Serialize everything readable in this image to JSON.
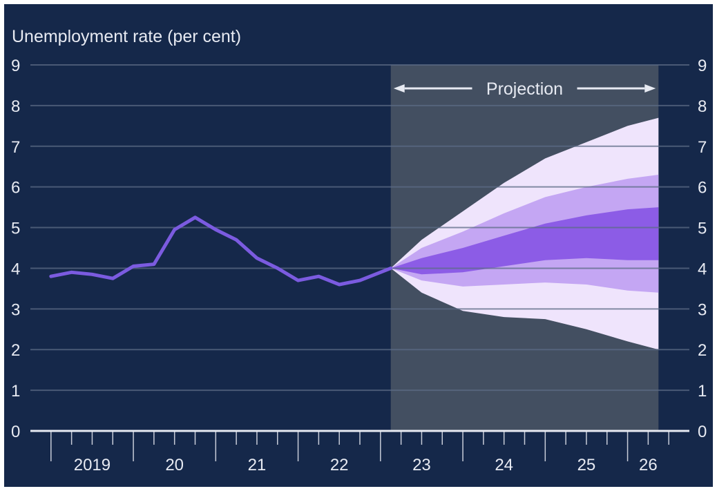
{
  "chart_data": {
    "type": "area",
    "title": "Unemployment rate (per cent)",
    "ylim": [
      0,
      9
    ],
    "y_ticks": [
      "0",
      "1",
      "2",
      "3",
      "4",
      "5",
      "6",
      "7",
      "8",
      "9"
    ],
    "x_tick_labels": [
      "2019",
      "20",
      "21",
      "22",
      "23",
      "24",
      "25",
      "26"
    ],
    "x_tick_positions": [
      2019.5,
      2020.5,
      2021.5,
      2022.5,
      2023.5,
      2024.5,
      2025.5,
      2026.25
    ],
    "xlim": [
      2018.75,
      2026.75
    ],
    "projection_label": "Projection",
    "projection_start": 2023.125,
    "projection_end": 2026.375,
    "grid": true,
    "series": [
      {
        "x": [
          2019.0,
          2019.25,
          2019.5,
          2019.75,
          2020.0,
          2020.25,
          2020.5,
          2020.75,
          2021.0,
          2021.25,
          2021.5,
          2021.75,
          2022.0,
          2022.25,
          2022.5,
          2022.75,
          2023.0,
          2023.125
        ],
        "values": [
          3.8,
          3.9,
          3.85,
          3.75,
          4.05,
          4.1,
          4.95,
          5.25,
          4.95,
          4.7,
          4.25,
          4.0,
          3.7,
          3.8,
          3.6,
          3.7,
          3.9,
          4.0
        ]
      }
    ],
    "fan_chart": {
      "x": [
        2023.125,
        2023.5,
        2024.0,
        2024.5,
        2025.0,
        2025.5,
        2026.0,
        2026.375
      ],
      "bands": [
        {
          "lower": [
            4.0,
            3.4,
            2.95,
            2.8,
            2.75,
            2.5,
            2.2,
            2.0
          ],
          "upper": [
            4.0,
            4.7,
            5.4,
            6.1,
            6.7,
            7.1,
            7.5,
            7.7
          ]
        },
        {
          "lower": [
            4.0,
            3.7,
            3.55,
            3.6,
            3.65,
            3.6,
            3.45,
            3.4
          ],
          "upper": [
            4.0,
            4.5,
            4.9,
            5.35,
            5.75,
            6.0,
            6.2,
            6.3
          ]
        },
        {
          "lower": [
            4.0,
            3.85,
            3.9,
            4.05,
            4.2,
            4.25,
            4.2,
            4.2
          ],
          "upper": [
            4.0,
            4.25,
            4.5,
            4.8,
            5.1,
            5.3,
            5.45,
            5.5
          ]
        }
      ]
    },
    "colors": {
      "background": "#15284a",
      "projection_shade": "#434f61",
      "grid": "#5c6b86",
      "axis": "#e7eaf2",
      "line": "#7b5be0",
      "band_outer": "#efe4fc",
      "band_middle": "#c4a6f3",
      "band_inner": "#8c5ce6",
      "text": "#e7eaf2"
    }
  }
}
